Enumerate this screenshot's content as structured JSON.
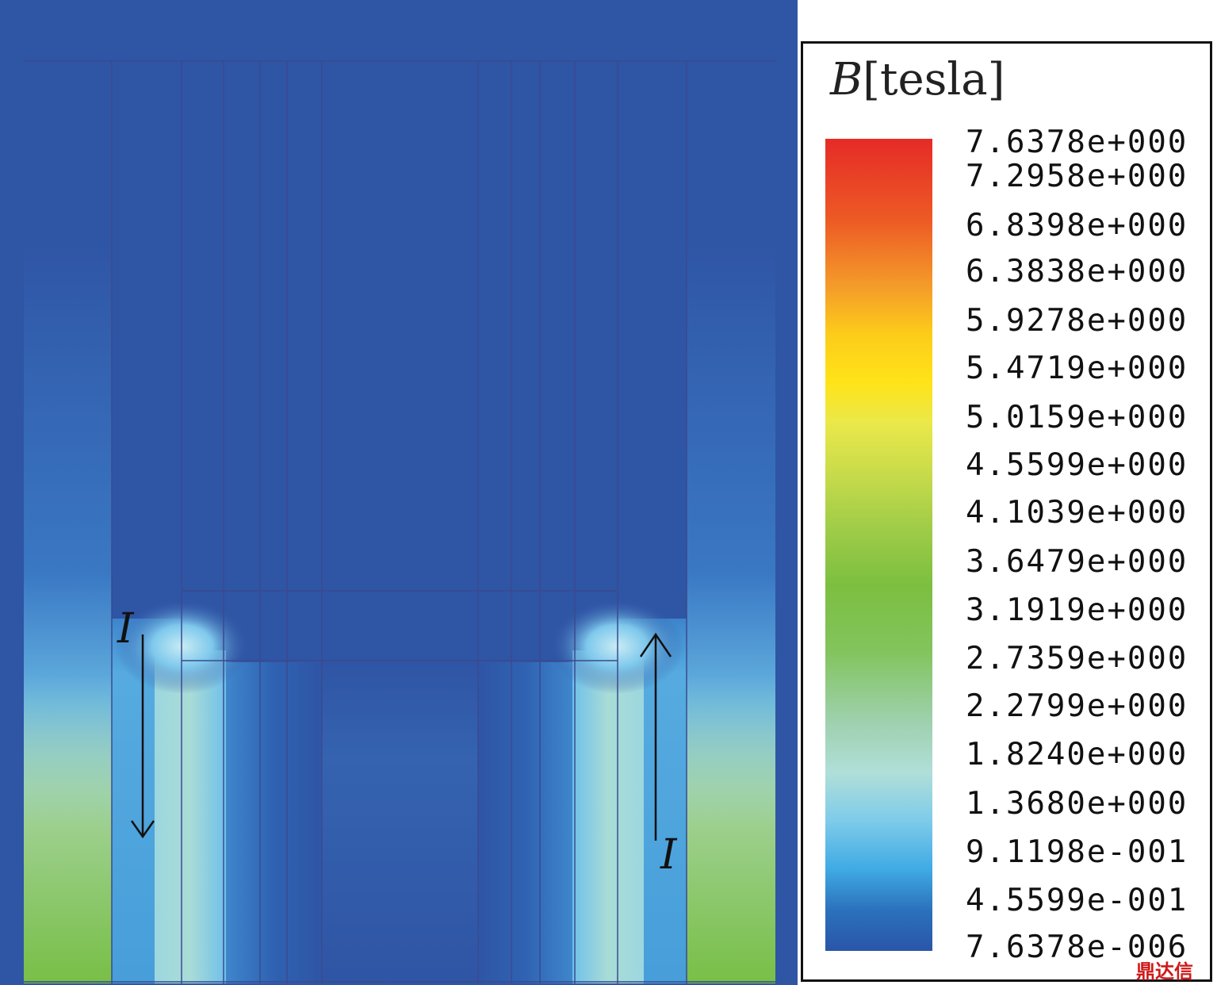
{
  "legend": {
    "variable": "B",
    "unit": "[tesla]",
    "ticks": [
      "7.6378e+000",
      "7.2958e+000",
      "6.8398e+000",
      "6.3838e+000",
      "5.9278e+000",
      "5.4719e+000",
      "5.0159e+000",
      "4.5599e+000",
      "4.1039e+000",
      "3.6479e+000",
      "3.1919e+000",
      "2.7359e+000",
      "2.2799e+000",
      "1.8240e+000",
      "1.3680e+000",
      "9.1198e-001",
      "4.5599e-001",
      "7.6378e-006"
    ]
  },
  "annotations": {
    "left_current": "I",
    "right_current": "I"
  },
  "colors": {
    "background_field": "#2f55a5",
    "max_color": "#e52b27",
    "min_color": "#2a55a8"
  },
  "watermark": "鼎达信"
}
